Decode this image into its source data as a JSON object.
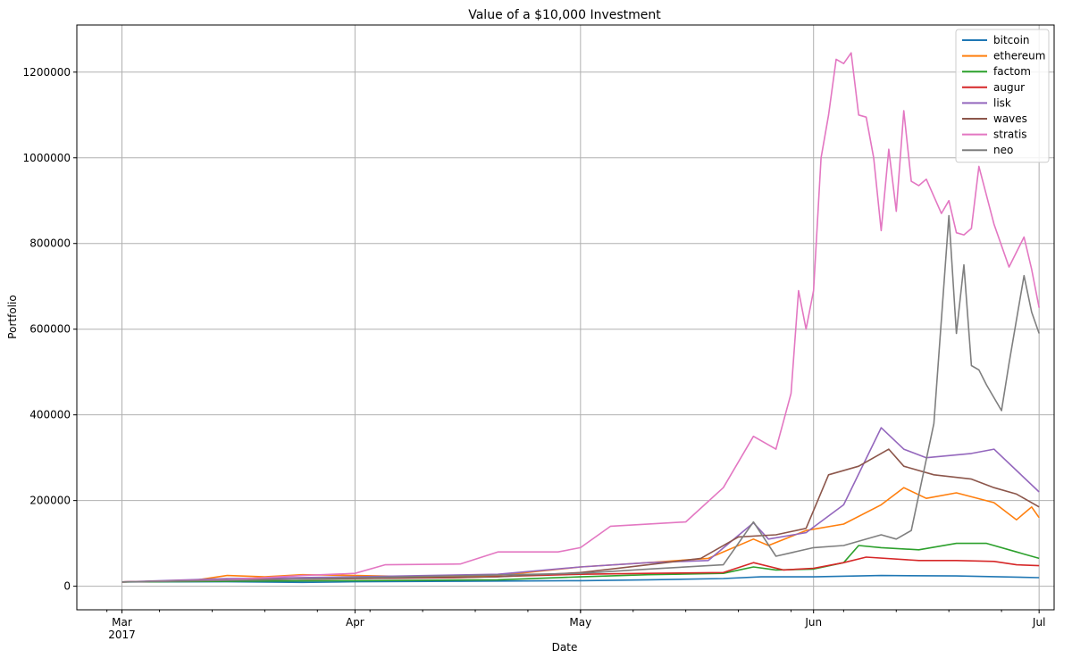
{
  "chart_data": {
    "type": "line",
    "title": "Value of a $10,000 Investment",
    "xlabel": "Date",
    "ylabel": "Portfolio",
    "grid": true,
    "legend_position": "top-right",
    "xlim": [
      "2017-02-23",
      "2017-07-03"
    ],
    "ylim": [
      -55000,
      1310000
    ],
    "x_ticks": [
      {
        "date": "2017-03-01",
        "label": "Mar",
        "sublabel": "2017"
      },
      {
        "date": "2017-04-01",
        "label": "Apr",
        "sublabel": ""
      },
      {
        "date": "2017-05-01",
        "label": "May",
        "sublabel": ""
      },
      {
        "date": "2017-06-01",
        "label": "Jun",
        "sublabel": ""
      },
      {
        "date": "2017-07-01",
        "label": "Jul",
        "sublabel": ""
      }
    ],
    "y_ticks": [
      {
        "value": 0,
        "label": "0"
      },
      {
        "value": 200000,
        "label": "200000"
      },
      {
        "value": 400000,
        "label": "400000"
      },
      {
        "value": 600000,
        "label": "600000"
      },
      {
        "value": 800000,
        "label": "800000"
      },
      {
        "value": 1000000,
        "label": "1000000"
      },
      {
        "value": 1200000,
        "label": "1200000"
      }
    ],
    "series": [
      {
        "name": "bitcoin",
        "color": "#1f77b4",
        "points": [
          [
            "2017-03-01",
            10000
          ],
          [
            "2017-03-15",
            10500
          ],
          [
            "2017-03-25",
            9000
          ],
          [
            "2017-04-01",
            10500
          ],
          [
            "2017-04-15",
            11500
          ],
          [
            "2017-05-01",
            13000
          ],
          [
            "2017-05-10",
            15000
          ],
          [
            "2017-05-20",
            18000
          ],
          [
            "2017-05-25",
            22000
          ],
          [
            "2017-06-01",
            22000
          ],
          [
            "2017-06-10",
            25000
          ],
          [
            "2017-06-20",
            24000
          ],
          [
            "2017-07-01",
            20000
          ]
        ]
      },
      {
        "name": "ethereum",
        "color": "#ff7f0e",
        "points": [
          [
            "2017-03-01",
            10000
          ],
          [
            "2017-03-10",
            12000
          ],
          [
            "2017-03-15",
            25000
          ],
          [
            "2017-03-20",
            22000
          ],
          [
            "2017-03-25",
            27000
          ],
          [
            "2017-04-01",
            25000
          ],
          [
            "2017-04-10",
            22000
          ],
          [
            "2017-04-20",
            25000
          ],
          [
            "2017-05-01",
            45000
          ],
          [
            "2017-05-10",
            55000
          ],
          [
            "2017-05-18",
            65000
          ],
          [
            "2017-05-24",
            110000
          ],
          [
            "2017-05-26",
            95000
          ],
          [
            "2017-05-31",
            130000
          ],
          [
            "2017-06-05",
            145000
          ],
          [
            "2017-06-10",
            190000
          ],
          [
            "2017-06-13",
            230000
          ],
          [
            "2017-06-16",
            205000
          ],
          [
            "2017-06-20",
            218000
          ],
          [
            "2017-06-25",
            195000
          ],
          [
            "2017-06-28",
            155000
          ],
          [
            "2017-06-30",
            185000
          ],
          [
            "2017-07-01",
            160000
          ]
        ]
      },
      {
        "name": "factom",
        "color": "#2ca02c",
        "points": [
          [
            "2017-03-01",
            10000
          ],
          [
            "2017-03-20",
            12000
          ],
          [
            "2017-04-01",
            13000
          ],
          [
            "2017-04-20",
            15000
          ],
          [
            "2017-05-01",
            22000
          ],
          [
            "2017-05-10",
            27000
          ],
          [
            "2017-05-20",
            30000
          ],
          [
            "2017-05-24",
            45000
          ],
          [
            "2017-05-27",
            38000
          ],
          [
            "2017-06-01",
            40000
          ],
          [
            "2017-06-05",
            55000
          ],
          [
            "2017-06-07",
            95000
          ],
          [
            "2017-06-10",
            90000
          ],
          [
            "2017-06-15",
            85000
          ],
          [
            "2017-06-20",
            100000
          ],
          [
            "2017-06-24",
            100000
          ],
          [
            "2017-06-28",
            80000
          ],
          [
            "2017-07-01",
            65000
          ]
        ]
      },
      {
        "name": "augur",
        "color": "#d62728",
        "points": [
          [
            "2017-03-01",
            10000
          ],
          [
            "2017-03-15",
            15000
          ],
          [
            "2017-04-01",
            18000
          ],
          [
            "2017-04-15",
            20000
          ],
          [
            "2017-05-01",
            28000
          ],
          [
            "2017-05-10",
            30000
          ],
          [
            "2017-05-20",
            32000
          ],
          [
            "2017-05-24",
            55000
          ],
          [
            "2017-05-28",
            38000
          ],
          [
            "2017-06-01",
            42000
          ],
          [
            "2017-06-05",
            55000
          ],
          [
            "2017-06-08",
            68000
          ],
          [
            "2017-06-15",
            60000
          ],
          [
            "2017-06-20",
            60000
          ],
          [
            "2017-06-25",
            58000
          ],
          [
            "2017-06-28",
            50000
          ],
          [
            "2017-07-01",
            48000
          ]
        ]
      },
      {
        "name": "lisk",
        "color": "#9467bd",
        "points": [
          [
            "2017-03-01",
            10000
          ],
          [
            "2017-03-15",
            18000
          ],
          [
            "2017-04-01",
            22000
          ],
          [
            "2017-04-20",
            28000
          ],
          [
            "2017-05-01",
            45000
          ],
          [
            "2017-05-10",
            55000
          ],
          [
            "2017-05-18",
            60000
          ],
          [
            "2017-05-24",
            148000
          ],
          [
            "2017-05-26",
            110000
          ],
          [
            "2017-05-31",
            125000
          ],
          [
            "2017-06-05",
            190000
          ],
          [
            "2017-06-10",
            370000
          ],
          [
            "2017-06-13",
            320000
          ],
          [
            "2017-06-16",
            300000
          ],
          [
            "2017-06-22",
            310000
          ],
          [
            "2017-06-25",
            320000
          ],
          [
            "2017-06-28",
            270000
          ],
          [
            "2017-07-01",
            220000
          ]
        ]
      },
      {
        "name": "waves",
        "color": "#8c564b",
        "points": [
          [
            "2017-03-01",
            10000
          ],
          [
            "2017-03-15",
            15000
          ],
          [
            "2017-04-01",
            18000
          ],
          [
            "2017-04-20",
            22000
          ],
          [
            "2017-05-01",
            32000
          ],
          [
            "2017-05-10",
            50000
          ],
          [
            "2017-05-17",
            65000
          ],
          [
            "2017-05-22",
            115000
          ],
          [
            "2017-05-27",
            120000
          ],
          [
            "2017-05-31",
            135000
          ],
          [
            "2017-06-03",
            260000
          ],
          [
            "2017-06-07",
            280000
          ],
          [
            "2017-06-11",
            320000
          ],
          [
            "2017-06-13",
            280000
          ],
          [
            "2017-06-17",
            260000
          ],
          [
            "2017-06-22",
            250000
          ],
          [
            "2017-06-25",
            230000
          ],
          [
            "2017-06-28",
            215000
          ],
          [
            "2017-07-01",
            185000
          ]
        ]
      },
      {
        "name": "stratis",
        "color": "#e377c2",
        "points": [
          [
            "2017-03-01",
            10000
          ],
          [
            "2017-03-15",
            15000
          ],
          [
            "2017-03-25",
            25000
          ],
          [
            "2017-04-01",
            30000
          ],
          [
            "2017-04-05",
            50000
          ],
          [
            "2017-04-15",
            52000
          ],
          [
            "2017-04-20",
            80000
          ],
          [
            "2017-04-28",
            80000
          ],
          [
            "2017-05-01",
            90000
          ],
          [
            "2017-05-05",
            140000
          ],
          [
            "2017-05-15",
            150000
          ],
          [
            "2017-05-20",
            230000
          ],
          [
            "2017-05-24",
            350000
          ],
          [
            "2017-05-27",
            320000
          ],
          [
            "2017-05-29",
            450000
          ],
          [
            "2017-05-30",
            690000
          ],
          [
            "2017-05-31",
            600000
          ],
          [
            "2017-06-01",
            690000
          ],
          [
            "2017-06-02",
            1000000
          ],
          [
            "2017-06-03",
            1100000
          ],
          [
            "2017-06-04",
            1230000
          ],
          [
            "2017-06-05",
            1220000
          ],
          [
            "2017-06-06",
            1245000
          ],
          [
            "2017-06-07",
            1100000
          ],
          [
            "2017-06-08",
            1095000
          ],
          [
            "2017-06-09",
            1000000
          ],
          [
            "2017-06-10",
            830000
          ],
          [
            "2017-06-11",
            1020000
          ],
          [
            "2017-06-12",
            875000
          ],
          [
            "2017-06-13",
            1110000
          ],
          [
            "2017-06-14",
            945000
          ],
          [
            "2017-06-15",
            935000
          ],
          [
            "2017-06-16",
            950000
          ],
          [
            "2017-06-18",
            870000
          ],
          [
            "2017-06-19",
            900000
          ],
          [
            "2017-06-20",
            825000
          ],
          [
            "2017-06-21",
            820000
          ],
          [
            "2017-06-22",
            835000
          ],
          [
            "2017-06-23",
            980000
          ],
          [
            "2017-06-25",
            845000
          ],
          [
            "2017-06-27",
            745000
          ],
          [
            "2017-06-29",
            815000
          ],
          [
            "2017-06-30",
            740000
          ],
          [
            "2017-07-01",
            650000
          ]
        ]
      },
      {
        "name": "neo",
        "color": "#7f7f7f",
        "points": [
          [
            "2017-03-01",
            10000
          ],
          [
            "2017-03-20",
            15000
          ],
          [
            "2017-04-01",
            20000
          ],
          [
            "2017-05-01",
            30000
          ],
          [
            "2017-05-10",
            40000
          ],
          [
            "2017-05-20",
            50000
          ],
          [
            "2017-05-24",
            150000
          ],
          [
            "2017-05-27",
            70000
          ],
          [
            "2017-06-01",
            90000
          ],
          [
            "2017-06-05",
            95000
          ],
          [
            "2017-06-10",
            120000
          ],
          [
            "2017-06-12",
            110000
          ],
          [
            "2017-06-14",
            130000
          ],
          [
            "2017-06-17",
            380000
          ],
          [
            "2017-06-19",
            865000
          ],
          [
            "2017-06-20",
            590000
          ],
          [
            "2017-06-21",
            750000
          ],
          [
            "2017-06-22",
            515000
          ],
          [
            "2017-06-23",
            505000
          ],
          [
            "2017-06-24",
            470000
          ],
          [
            "2017-06-26",
            410000
          ],
          [
            "2017-06-27",
            520000
          ],
          [
            "2017-06-29",
            725000
          ],
          [
            "2017-06-30",
            640000
          ],
          [
            "2017-07-01",
            590000
          ]
        ]
      }
    ]
  }
}
